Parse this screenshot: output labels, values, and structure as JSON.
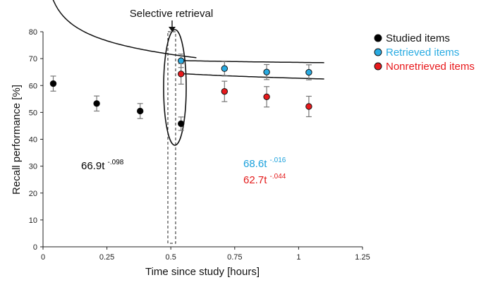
{
  "chart_data": {
    "type": "scatter",
    "xlabel": "Time since study [hours]",
    "ylabel": "Recall performance [%]",
    "xlim": [
      0,
      1.25
    ],
    "ylim": [
      0,
      80
    ],
    "xticks": [
      0,
      0.25,
      0.5,
      0.75,
      1,
      1.25
    ],
    "xtick_labels": [
      "0",
      "0.25",
      "0.5",
      "0.75",
      "1",
      "1.25"
    ],
    "yticks": [
      0,
      10,
      20,
      30,
      40,
      50,
      60,
      70,
      80
    ],
    "ytick_labels": [
      "0",
      "10",
      "20",
      "30",
      "40",
      "50",
      "60",
      "70",
      "80"
    ],
    "grid": false,
    "legend_position": "top-right",
    "annotation": {
      "text": "Selective retrieval",
      "x": 0.52
    },
    "series": [
      {
        "name": "Studied items",
        "color": "#000000",
        "x": [
          0.04,
          0.21,
          0.38,
          0.54
        ],
        "y": [
          60.7,
          53.3,
          50.5,
          45.8
        ],
        "err": [
          2.8,
          2.8,
          2.8,
          2.5
        ],
        "fit": {
          "a": 66.9,
          "b": -0.098,
          "x_from": 0.02,
          "x_to": 0.6
        },
        "equation": {
          "base": "66.9t",
          "exponent": "-.098",
          "color": "#000000"
        }
      },
      {
        "name": "Retrieved items",
        "color": "#29abe2",
        "x": [
          0.54,
          0.71,
          0.875,
          1.04
        ],
        "y": [
          69.2,
          66.3,
          65.0,
          64.9
        ],
        "err": [
          2.5,
          2.8,
          2.8,
          2.8
        ],
        "fit": {
          "a": 68.6,
          "b": -0.016,
          "x_from": 0.53,
          "x_to": 1.1
        },
        "equation": {
          "base": "68.6t",
          "exponent": "-.016",
          "color": "#1ba1dc"
        }
      },
      {
        "name": "Nonretrieved items",
        "color": "#e8191c",
        "x": [
          0.54,
          0.71,
          0.875,
          1.04
        ],
        "y": [
          64.3,
          57.8,
          55.8,
          52.2
        ],
        "err": [
          3.8,
          3.8,
          3.8,
          3.8
        ],
        "fit": {
          "a": 62.7,
          "b": -0.044,
          "x_from": 0.53,
          "x_to": 1.1
        },
        "equation": {
          "base": "62.7t",
          "exponent": "-.044",
          "color": "#e31b1b"
        }
      }
    ]
  }
}
